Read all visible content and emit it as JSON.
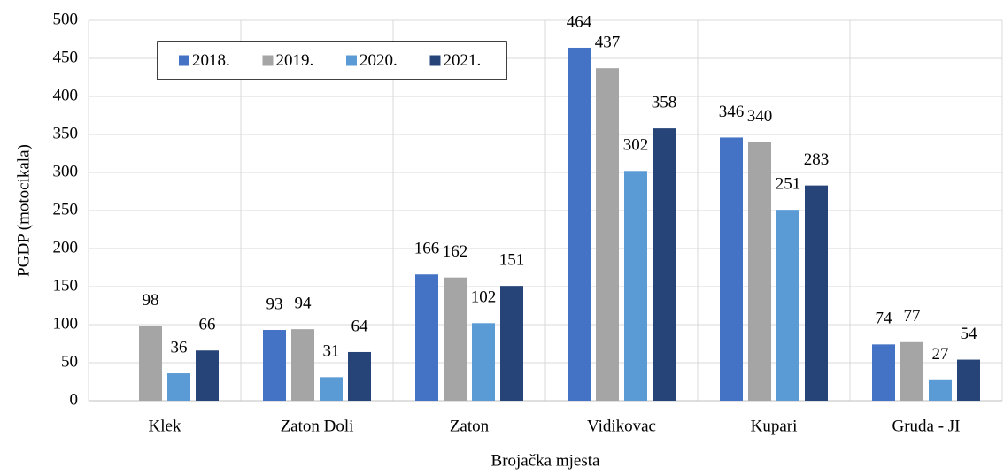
{
  "chart_data": {
    "type": "bar",
    "x_label": "Brojačka mjesta",
    "y_label": "PGDP (motocikala)",
    "categories": [
      "Klek",
      "Zaton Doli",
      "Zaton",
      "Vidikovac",
      "Kupari",
      "Gruda - JI"
    ],
    "series": [
      {
        "name": "2018.",
        "color": "#4472c4",
        "values": [
          null,
          93,
          166,
          464,
          346,
          74
        ]
      },
      {
        "name": "2019.",
        "color": "#a5a5a5",
        "values": [
          98,
          94,
          162,
          437,
          340,
          77
        ]
      },
      {
        "name": "2020.",
        "color": "#5b9bd5",
        "values": [
          36,
          31,
          102,
          302,
          251,
          27
        ]
      },
      {
        "name": "2021.",
        "color": "#264478",
        "values": [
          66,
          64,
          151,
          358,
          283,
          54
        ]
      }
    ],
    "ylim": [
      0,
      500
    ],
    "yticks": [
      0,
      50,
      100,
      150,
      200,
      250,
      300,
      350,
      400,
      450,
      500
    ],
    "grid": true,
    "legend": "top-left"
  }
}
